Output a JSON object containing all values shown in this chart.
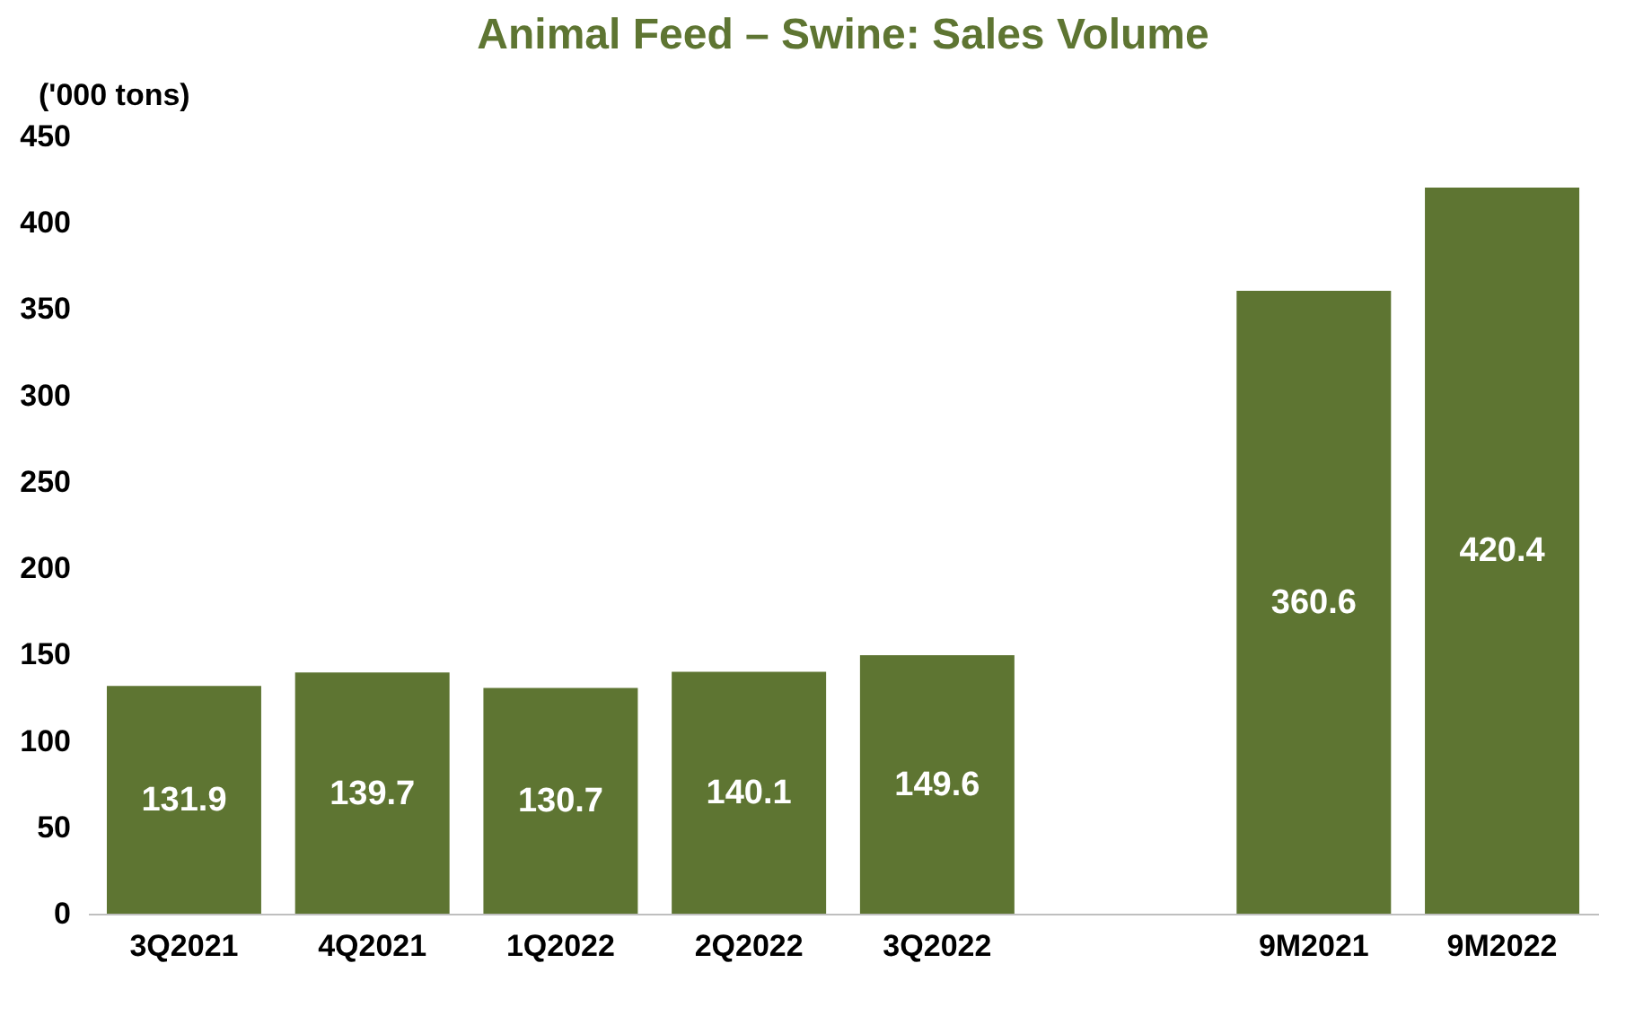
{
  "chart_data": {
    "type": "bar",
    "title": "Animal Feed – Swine: Sales Volume",
    "ylabel": "('000 tons)",
    "categories": [
      "3Q2021",
      "4Q2021",
      "1Q2022",
      "2Q2022",
      "3Q2022",
      null,
      "9M2021",
      "9M2022"
    ],
    "values": [
      131.9,
      139.7,
      130.7,
      140.1,
      149.6,
      null,
      360.6,
      420.4
    ],
    "color": "#5e7532",
    "ylim": [
      0,
      450
    ],
    "yticks": [
      0,
      50,
      100,
      150,
      200,
      250,
      300,
      350,
      400,
      450
    ],
    "grid": false,
    "data_labels": true
  }
}
